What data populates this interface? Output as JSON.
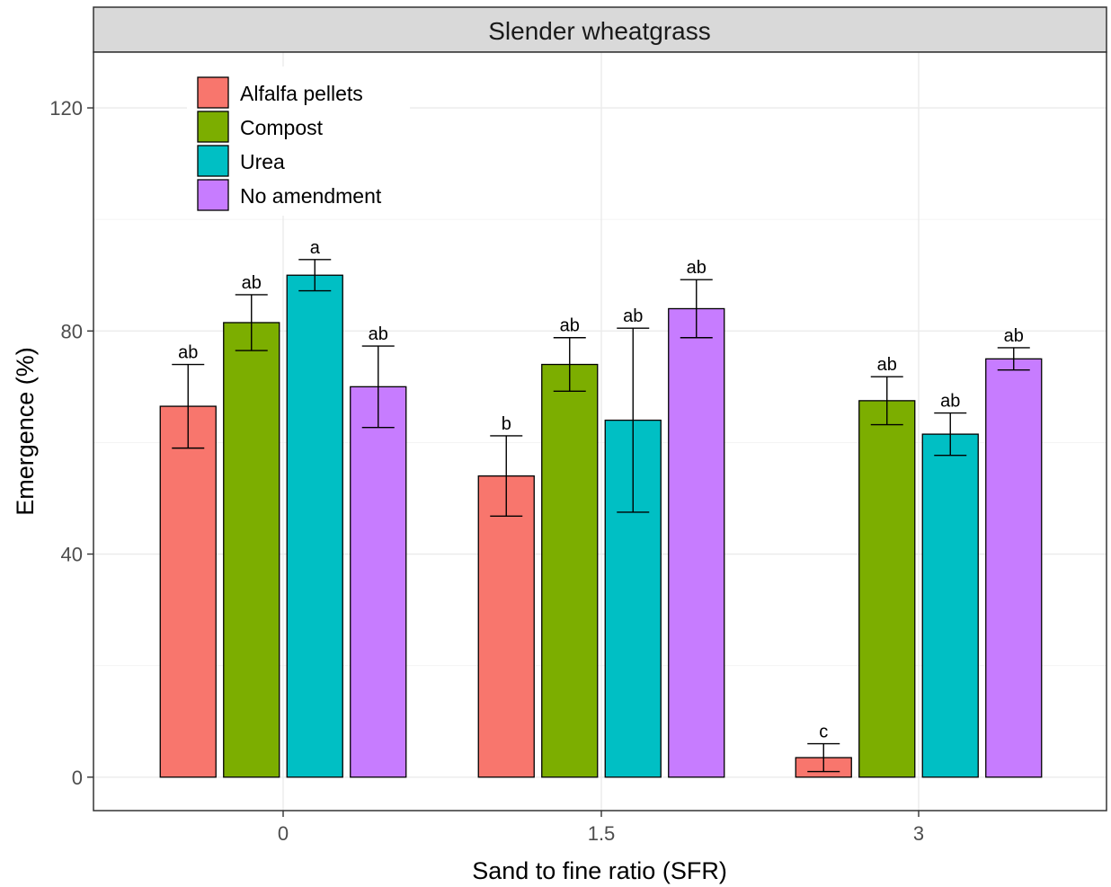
{
  "chart_data": {
    "type": "bar",
    "title": "Slender wheatgrass",
    "xlabel": "Sand to fine ratio (SFR)",
    "ylabel": "Emergence (%)",
    "ylim": [
      -6,
      130
    ],
    "yticks": [
      0,
      40,
      80,
      120
    ],
    "grid": true,
    "legend_position": "top-left",
    "categories": [
      "0",
      "1.5",
      "3"
    ],
    "series": [
      {
        "name": "Alfalfa pellets",
        "color": "#F8766D",
        "values": [
          66.5,
          54,
          3.5
        ],
        "errors": [
          7.5,
          7.2,
          2.5
        ],
        "labels": [
          "ab",
          "b",
          "c"
        ]
      },
      {
        "name": "Compost",
        "color": "#7CAE00",
        "values": [
          81.5,
          74,
          67.5
        ],
        "errors": [
          5,
          4.8,
          4.3
        ],
        "labels": [
          "ab",
          "ab",
          "ab"
        ]
      },
      {
        "name": "Urea",
        "color": "#00BFC4",
        "values": [
          90,
          64,
          61.5
        ],
        "errors": [
          2.8,
          16.5,
          3.8
        ],
        "labels": [
          "a",
          "ab",
          "ab"
        ]
      },
      {
        "name": "No amendment",
        "color": "#C77CFF",
        "values": [
          70,
          84,
          75
        ],
        "errors": [
          7.3,
          5.2,
          2
        ],
        "labels": [
          "ab",
          "ab",
          "ab"
        ]
      }
    ]
  }
}
